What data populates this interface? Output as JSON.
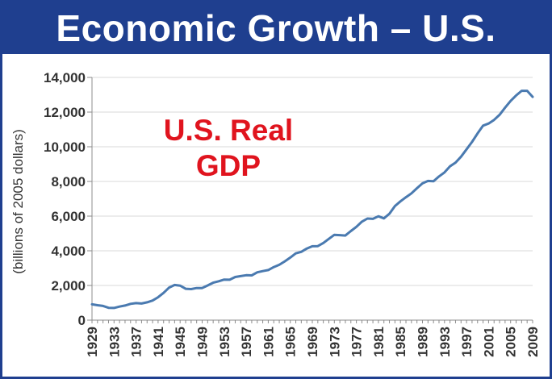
{
  "title": "Economic Growth – U.S.",
  "colors": {
    "frame": "#1f3f8f",
    "title_text": "#ffffff",
    "line": "#4a7ab0",
    "annotation": "#e0141e"
  },
  "chart_data": {
    "type": "line",
    "title": "Economic Growth – U.S.",
    "ylabel": "(billions of 2005 dollars)",
    "xlabel": "",
    "annotation": [
      "U.S. Real",
      "GDP"
    ],
    "ylim": [
      0,
      14000
    ],
    "xlim": [
      1929,
      2009
    ],
    "grid": "horizontal",
    "y_ticks": [
      0,
      2000,
      4000,
      6000,
      8000,
      10000,
      12000,
      14000
    ],
    "y_tick_labels": [
      "0",
      "2,000",
      "4,000",
      "6,000",
      "8,000",
      "10,000",
      "12,000",
      "14,000"
    ],
    "x_ticks": [
      1929,
      1933,
      1937,
      1941,
      1945,
      1949,
      1953,
      1957,
      1961,
      1965,
      1969,
      1973,
      1977,
      1981,
      1985,
      1989,
      1993,
      1997,
      2001,
      2005,
      2009
    ],
    "series": [
      {
        "x": [
          1929,
          1930,
          1931,
          1932,
          1933,
          1934,
          1935,
          1936,
          1937,
          1938,
          1939,
          1940,
          1941,
          1942,
          1943,
          1944,
          1945,
          1946,
          1947,
          1948,
          1949,
          1950,
          1951,
          1952,
          1953,
          1954,
          1955,
          1956,
          1957,
          1958,
          1959,
          1960,
          1961,
          1962,
          1963,
          1964,
          1965,
          1966,
          1967,
          1968,
          1969,
          1970,
          1971,
          1972,
          1973,
          1974,
          1975,
          1976,
          1977,
          1978,
          1979,
          1980,
          1981,
          1982,
          1983,
          1984,
          1985,
          1986,
          1987,
          1988,
          1989,
          1990,
          1991,
          1992,
          1993,
          1994,
          1995,
          1996,
          1997,
          1998,
          1999,
          2000,
          2001,
          2002,
          2003,
          2004,
          2005,
          2006,
          2007,
          2008,
          2009
        ],
        "values": [
          910,
          860,
          820,
          710,
          700,
          780,
          840,
          940,
          980,
          960,
          1030,
          1130,
          1320,
          1570,
          1880,
          2030,
          1990,
          1810,
          1790,
          1850,
          1850,
          2000,
          2160,
          2240,
          2340,
          2330,
          2490,
          2540,
          2590,
          2580,
          2760,
          2830,
          2890,
          3060,
          3190,
          3390,
          3610,
          3850,
          3940,
          4130,
          4260,
          4270,
          4450,
          4690,
          4920,
          4900,
          4880,
          5140,
          5380,
          5680,
          5860,
          5840,
          5990,
          5870,
          6140,
          6580,
          6850,
          7090,
          7310,
          7610,
          7890,
          8030,
          8010,
          8290,
          8520,
          8870,
          9090,
          9430,
          9850,
          10280,
          10770,
          11220,
          11340,
          11550,
          11840,
          12260,
          12640,
          12960,
          13230,
          13230,
          12880
        ]
      }
    ]
  }
}
